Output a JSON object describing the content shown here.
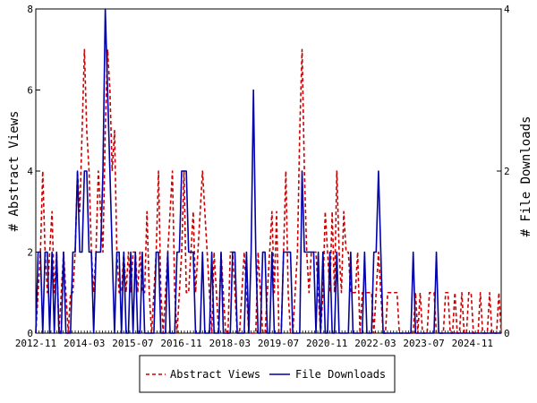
{
  "chart_data": {
    "type": "line",
    "title": "",
    "xlabel": "",
    "ylabel_left": "# Abstract Views",
    "ylabel_right": "# File Downloads",
    "x_tick_labels": [
      "2012-11",
      "2014-03",
      "2015-07",
      "2016-11",
      "2018-03",
      "2019-07",
      "2020-11",
      "2022-03",
      "2023-07",
      "2024-11"
    ],
    "y_left": {
      "ylim": [
        0,
        8
      ],
      "ticks": [
        0,
        2,
        4,
        6,
        8
      ]
    },
    "y_right": {
      "ylim": [
        0,
        4
      ],
      "ticks": [
        0,
        2,
        4
      ]
    },
    "grid": false,
    "legend_position": "bottom",
    "series": [
      {
        "name": "Abstract Views",
        "axis": "left",
        "color": "#cc0000",
        "style": "dashed",
        "values": [
          0,
          1,
          2,
          4,
          2,
          1,
          2,
          3,
          1,
          2,
          0,
          1,
          2,
          1,
          0,
          1,
          1,
          2,
          4,
          3,
          5,
          7,
          5,
          4,
          2,
          1,
          2,
          4,
          3,
          2,
          5,
          7,
          6,
          4,
          5,
          2,
          1,
          1,
          2,
          1,
          2,
          1,
          2,
          2,
          1,
          2,
          1,
          1,
          3,
          1,
          0,
          1,
          2,
          4,
          1,
          0,
          1,
          2,
          3,
          4,
          1,
          0,
          1,
          2,
          4,
          1,
          1,
          2,
          3,
          1,
          2,
          3,
          4,
          3,
          2,
          1,
          0,
          2,
          1,
          0,
          2,
          1,
          0,
          0,
          2,
          2,
          1,
          0,
          0,
          1,
          2,
          1,
          0,
          0,
          0,
          0,
          2,
          1,
          0,
          0,
          1,
          2,
          3,
          1,
          3,
          0,
          0,
          2,
          4,
          1,
          0,
          0,
          1,
          2,
          5,
          7,
          4,
          2,
          1,
          2,
          2,
          2,
          1,
          0,
          1,
          3,
          2,
          1,
          3,
          1,
          4,
          2,
          1,
          3,
          2,
          2,
          1,
          1,
          1,
          2,
          0,
          1,
          1,
          1,
          1,
          1,
          0,
          1,
          2,
          1,
          0,
          0,
          1,
          1,
          1,
          1,
          1,
          0,
          0,
          0,
          0,
          0,
          0,
          0,
          1,
          0,
          1,
          0,
          0,
          0,
          1,
          1,
          1,
          0,
          0,
          0,
          0,
          1,
          1,
          0,
          0,
          1,
          0,
          0,
          1,
          0,
          0,
          1,
          1,
          0,
          0,
          0,
          1,
          0,
          0,
          0,
          1,
          0,
          0,
          0,
          1,
          0
        ]
      },
      {
        "name": "File Downloads",
        "axis": "right",
        "color": "#0000aa",
        "style": "solid",
        "values": [
          0,
          1,
          1,
          0,
          1,
          1,
          0,
          1,
          0,
          1,
          0,
          0,
          1,
          0,
          0,
          0,
          1,
          1,
          2,
          1,
          1,
          2,
          2,
          1,
          1,
          0,
          1,
          1,
          1,
          2,
          4,
          3,
          2,
          1,
          0,
          1,
          1,
          0,
          1,
          0,
          0,
          1,
          0,
          1,
          0,
          0,
          1,
          0,
          0,
          0,
          0,
          0,
          1,
          1,
          0,
          0,
          0,
          1,
          0,
          0,
          0,
          1,
          1,
          2,
          2,
          2,
          1,
          1,
          1,
          0,
          0,
          0,
          1,
          0,
          0,
          0,
          1,
          0,
          0,
          0,
          1,
          0,
          0,
          0,
          0,
          1,
          1,
          0,
          0,
          0,
          0,
          1,
          0,
          1,
          3,
          1,
          0,
          0,
          1,
          1,
          0,
          0,
          1,
          0,
          0,
          0,
          0,
          1,
          1,
          1,
          1,
          0,
          0,
          0,
          0,
          2,
          1,
          1,
          1,
          1,
          1,
          0,
          1,
          0,
          1,
          0,
          0,
          1,
          0,
          0,
          1,
          0,
          0,
          0,
          0,
          0,
          1,
          0,
          0,
          0,
          0,
          0,
          1,
          0,
          0,
          0,
          1,
          1,
          2,
          1,
          0,
          0,
          0,
          0,
          0,
          0,
          0,
          0,
          0,
          0,
          0,
          0,
          0,
          1,
          0,
          0,
          0,
          0,
          0,
          0,
          0,
          0,
          0,
          1,
          0,
          0,
          0,
          0,
          0,
          0,
          0,
          0,
          0,
          0,
          0,
          0,
          0,
          0,
          0,
          0,
          0,
          0,
          0,
          0,
          0,
          0,
          0,
          0,
          0,
          0,
          0,
          0
        ]
      }
    ]
  }
}
